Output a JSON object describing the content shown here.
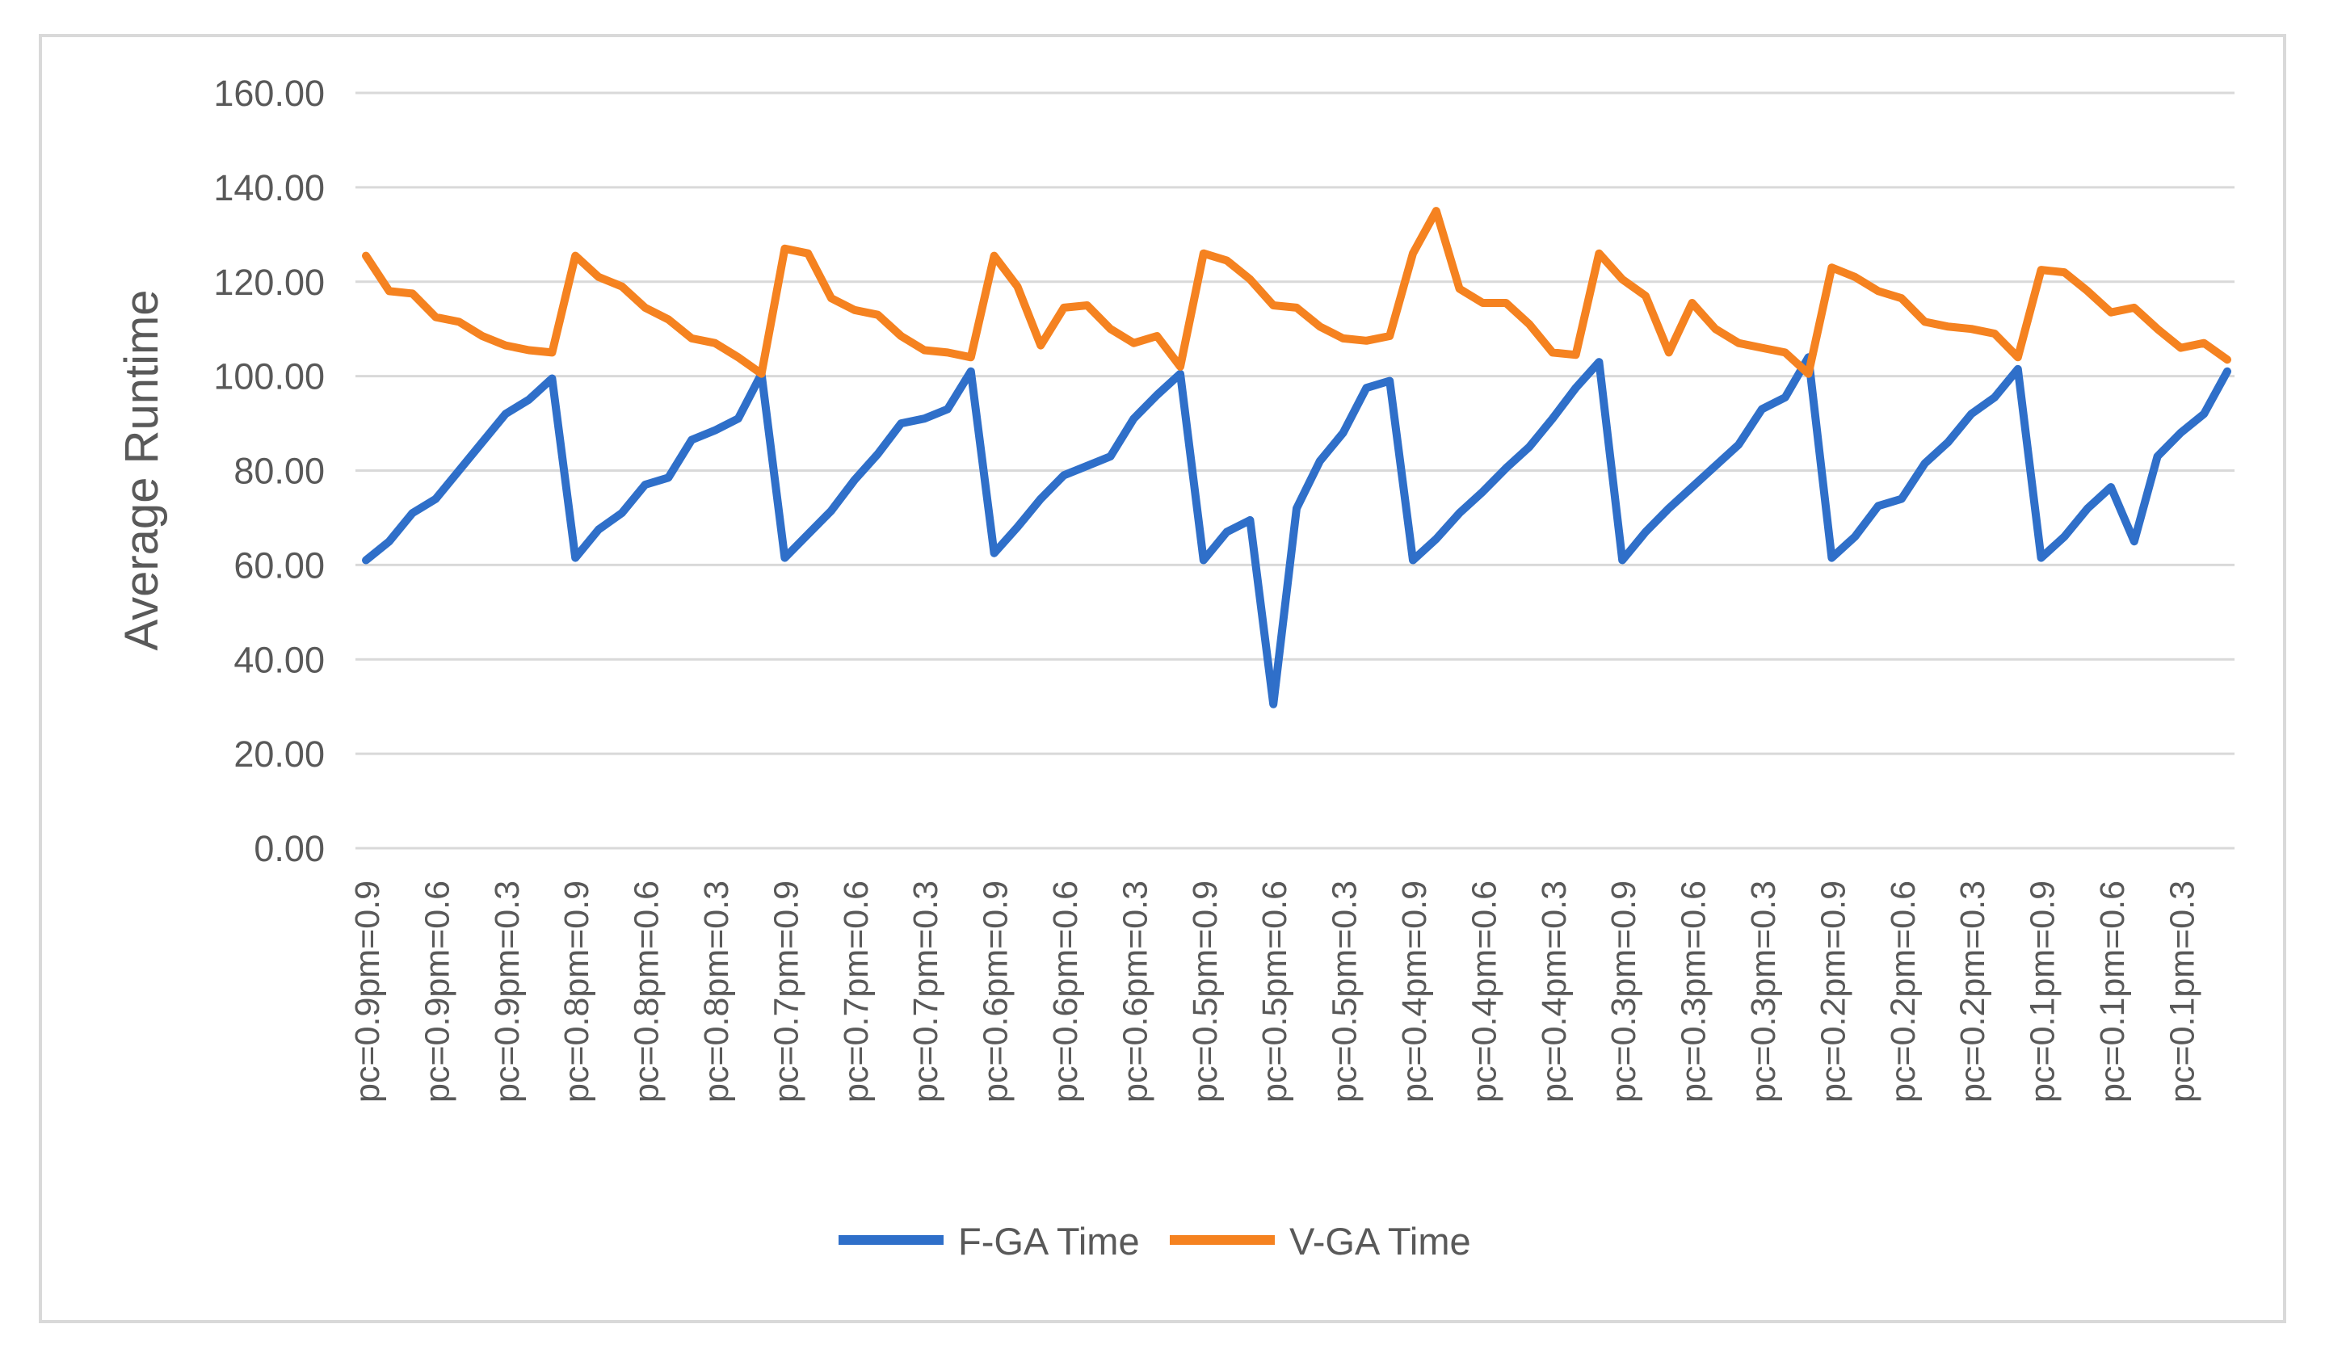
{
  "chart_data": {
    "type": "line",
    "ylabel": "Average Runtime",
    "xlabel": "",
    "ylim": [
      0,
      160
    ],
    "yticks": [
      "0.00",
      "20.00",
      "40.00",
      "60.00",
      "80.00",
      "100.00",
      "120.00",
      "140.00",
      "160.00"
    ],
    "grid": true,
    "legend_position": "bottom",
    "x_tick_labels": [
      "pc=0.9pm=0.9",
      "pc=0.9pm=0.6",
      "pc=0.9pm=0.3",
      "pc=0.8pm=0.9",
      "pc=0.8pm=0.6",
      "pc=0.8pm=0.3",
      "pc=0.7pm=0.9",
      "pc=0.7pm=0.6",
      "pc=0.7pm=0.3",
      "pc=0.6pm=0.9",
      "pc=0.6pm=0.6",
      "pc=0.6pm=0.3",
      "pc=0.5pm=0.9",
      "pc=0.5pm=0.6",
      "pc=0.5pm=0.3",
      "pc=0.4pm=0.9",
      "pc=0.4pm=0.6",
      "pc=0.4pm=0.3",
      "pc=0.3pm=0.9",
      "pc=0.3pm=0.6",
      "pc=0.3pm=0.3",
      "pc=0.2pm=0.9",
      "pc=0.2pm=0.6",
      "pc=0.2pm=0.3",
      "pc=0.1pm=0.9",
      "pc=0.1pm=0.6",
      "pc=0.1pm=0.3"
    ],
    "series": [
      {
        "name": "F-GA Time",
        "color": "#2f6fc9",
        "values": [
          61,
          65,
          71,
          74,
          80,
          86,
          92,
          95,
          99.5,
          61.5,
          67.5,
          71,
          77,
          78.5,
          86.5,
          88.5,
          91,
          100.5,
          61.5,
          66.5,
          71.5,
          78,
          83.5,
          90,
          91,
          93,
          101,
          62.5,
          68,
          74,
          79,
          81,
          83,
          91,
          96,
          100.5,
          61,
          67,
          69.5,
          30.5,
          72,
          82,
          88,
          97.5,
          99,
          61,
          65.5,
          71,
          75.5,
          80.5,
          85,
          91,
          97.5,
          103,
          61,
          67,
          72,
          76.5,
          81,
          85.5,
          93,
          95.5,
          104,
          61.5,
          66,
          72.5,
          74,
          81.5,
          86,
          92,
          95.5,
          101.5,
          61.5,
          66,
          72,
          76.5,
          65,
          83,
          88,
          92,
          101
        ]
      },
      {
        "name": "V-GA Time",
        "color": "#f58220",
        "values": [
          125.5,
          118,
          117.5,
          112.5,
          111.5,
          108.5,
          106.5,
          105.5,
          105,
          125.5,
          121,
          119,
          114.5,
          112,
          108,
          107,
          104,
          100.5,
          127,
          126,
          116.5,
          114,
          113,
          108.5,
          105.5,
          105,
          104,
          125.5,
          119,
          106.5,
          114.5,
          115,
          110,
          107,
          108.5,
          102,
          126,
          124.5,
          120.5,
          115,
          114.5,
          110.5,
          108,
          107.5,
          108.5,
          126,
          135,
          118.5,
          115.5,
          115.5,
          111,
          105,
          104.5,
          126,
          120.5,
          117,
          105,
          115.5,
          110,
          107,
          106,
          105,
          100.5,
          123,
          121,
          118,
          116.5,
          111.5,
          110.5,
          110,
          109,
          104,
          122.5,
          122,
          118,
          113.5,
          114.5,
          110,
          106,
          107,
          103.5
        ]
      }
    ]
  }
}
